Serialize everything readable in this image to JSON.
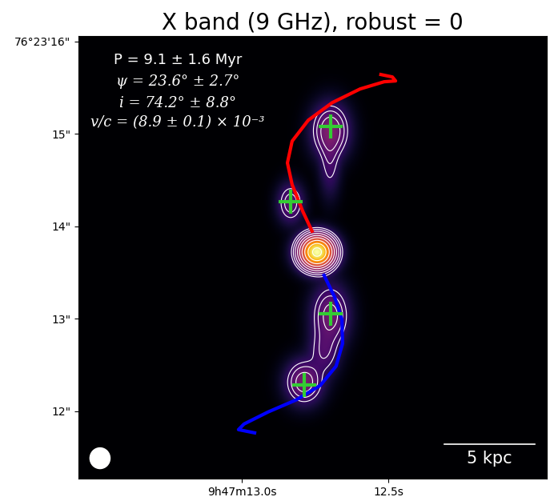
{
  "chart_data": {
    "type": "image",
    "title": "X band (9 GHz), robust = 0",
    "xlim": [
      13.557,
      11.959
    ],
    "ylim": [
      11.27,
      16.06
    ],
    "xticks": [
      {
        "value": 13.0,
        "label": "9h47m13.0s"
      },
      {
        "value": 12.5,
        "label": "12.5s"
      }
    ],
    "yticks": [
      {
        "value": 12,
        "label": "12\""
      },
      {
        "value": 13,
        "label": "13\""
      },
      {
        "value": 14,
        "label": "14\""
      },
      {
        "value": 15,
        "label": "15\""
      },
      {
        "value": 16,
        "label": "76°23'16\""
      }
    ],
    "sources": [
      {
        "x": 12.743,
        "y": 13.722,
        "peak": 1.0,
        "sigma_x": 0.033,
        "sigma_y": 0.1
      },
      {
        "x": 12.697,
        "y": 15.035,
        "peak": 0.12,
        "sigma_x": 0.035,
        "sigma_y": 0.16
      },
      {
        "x": 12.699,
        "y": 14.687,
        "peak": 0.04,
        "sigma_x": 0.02,
        "sigma_y": 0.2
      },
      {
        "x": 12.833,
        "y": 14.252,
        "peak": 0.07,
        "sigma_x": 0.025,
        "sigma_y": 0.12
      },
      {
        "x": 12.697,
        "y": 13.035,
        "peak": 0.1,
        "sigma_x": 0.035,
        "sigma_y": 0.18
      },
      {
        "x": 12.719,
        "y": 12.643,
        "peak": 0.05,
        "sigma_x": 0.03,
        "sigma_y": 0.15
      },
      {
        "x": 12.787,
        "y": 12.313,
        "peak": 0.11,
        "sigma_x": 0.035,
        "sigma_y": 0.13
      }
    ],
    "contour_levels": [
      0.03,
      0.05,
      0.08,
      0.13,
      0.2,
      0.3,
      0.45,
      0.65,
      0.9
    ],
    "curves": [
      {
        "color": "#ff0000",
        "x": [
          12.76,
          12.792,
          12.828,
          12.844,
          12.828,
          12.773,
          12.691,
          12.596,
          12.514,
          12.475,
          12.486,
          12.525
        ],
        "y": [
          13.948,
          14.165,
          14.452,
          14.687,
          14.922,
          15.148,
          15.339,
          15.487,
          15.565,
          15.574,
          15.617,
          15.643
        ]
      },
      {
        "color": "#0000ff",
        "x": [
          12.719,
          12.683,
          12.658,
          12.656,
          12.678,
          12.732,
          12.814,
          12.91,
          12.992,
          13.011,
          12.956
        ],
        "y": [
          13.47,
          13.235,
          12.991,
          12.73,
          12.487,
          12.278,
          12.122,
          11.991,
          11.861,
          11.8,
          11.765
        ]
      }
    ],
    "markers": {
      "color": "#33cc33",
      "marker": "+",
      "x": [
        12.697,
        12.833,
        12.697,
        12.787
      ],
      "y": [
        15.078,
        14.27,
        13.052,
        12.287
      ]
    },
    "annotations": [
      "P = 9.1 ± 1.6 Myr",
      "ψ = 23.6° ± 2.7°",
      "i = 74.2° ± 8.8°",
      "v/c = (8.9 ± 0.1) × 10⁻³"
    ],
    "scale_bar_label": "5 kpc"
  }
}
